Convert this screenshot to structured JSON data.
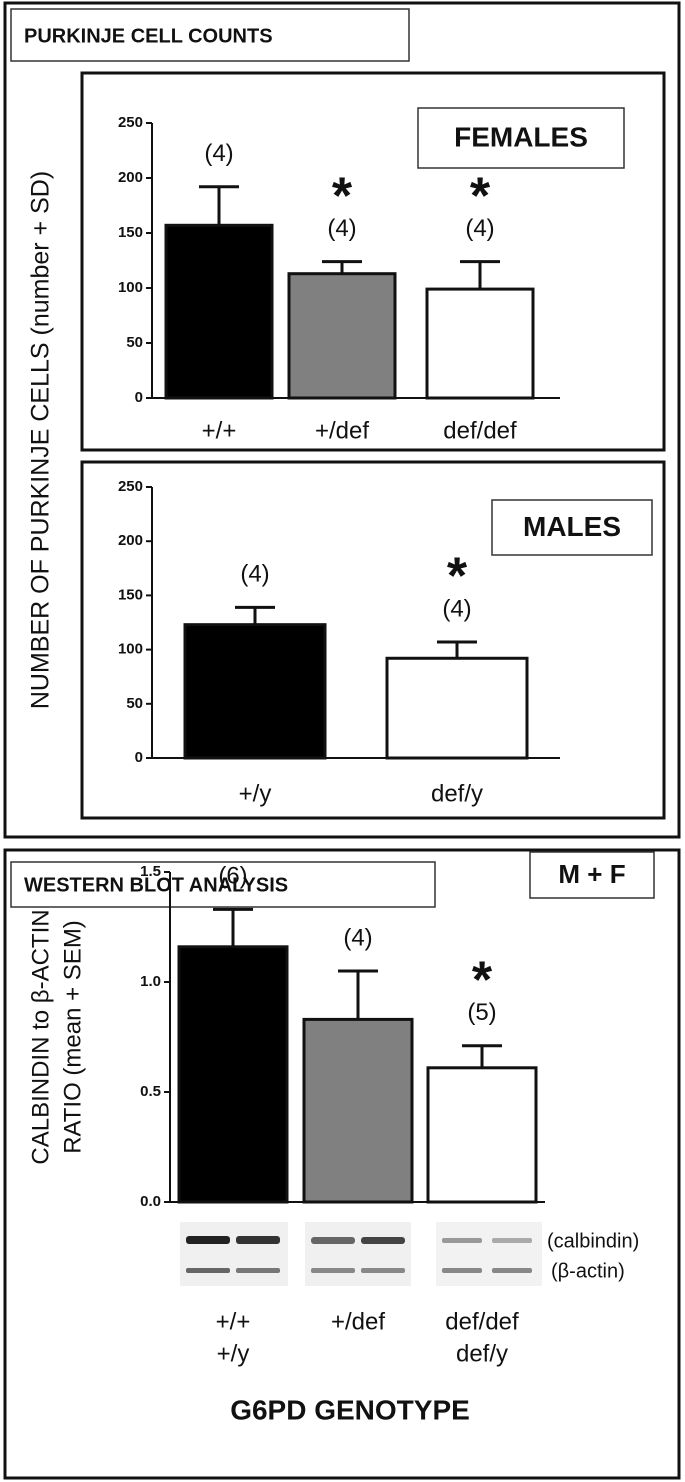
{
  "panels": [
    {
      "title": "PURKINJE CELL COUNTS",
      "ylabel": "NUMBER OF PURKINJE CELLS (number + SD)"
    },
    {
      "title": "WESTERN BLOT ANALYSIS",
      "xlabel": "G6PD GENOTYPE",
      "blot_labels": [
        "(calbindin)",
        "(β-actin)"
      ]
    }
  ],
  "chart_data": [
    {
      "type": "bar",
      "label_box": "FEMALES",
      "categories": [
        [
          "+/+"
        ],
        [
          "+/def"
        ],
        [
          "def/def"
        ]
      ],
      "values": [
        157,
        113,
        99
      ],
      "errors": [
        35,
        11,
        25
      ],
      "n_labels": [
        "(4)",
        "(4)",
        "(4)"
      ],
      "stars": [
        null,
        "*",
        "*"
      ],
      "colors": [
        "#000000",
        "#808080",
        "#ffffff"
      ],
      "ylim": [
        0,
        250
      ],
      "yticks": [
        0,
        50,
        100,
        150,
        200,
        250
      ]
    },
    {
      "type": "bar",
      "label_box": "MALES",
      "categories": [
        [
          "+/y"
        ],
        [
          "def/y"
        ]
      ],
      "values": [
        123,
        92
      ],
      "errors": [
        16,
        15
      ],
      "n_labels": [
        "(4)",
        "(4)"
      ],
      "stars": [
        null,
        "*"
      ],
      "colors": [
        "#000000",
        "#ffffff"
      ],
      "ylim": [
        0,
        250
      ],
      "yticks": [
        0,
        50,
        100,
        150,
        200,
        250
      ]
    },
    {
      "type": "bar",
      "label_box": "M + F",
      "ylabel": [
        "CALBINDIN to β-ACTIN",
        "RATIO (mean + SEM)"
      ],
      "categories": [
        [
          "+/+",
          "+/y"
        ],
        [
          "+/def"
        ],
        [
          "def/def",
          "def/y"
        ]
      ],
      "values": [
        1.16,
        0.83,
        0.61
      ],
      "errors": [
        0.17,
        0.22,
        0.1
      ],
      "n_labels": [
        "(6)",
        "(4)",
        "(5)"
      ],
      "stars": [
        null,
        null,
        "*"
      ],
      "colors": [
        "#000000",
        "#808080",
        "#ffffff"
      ],
      "ylim": [
        0,
        1.5
      ],
      "yticks": [
        {
          "value": 0,
          "label": "0.0"
        },
        0.5,
        {
          "value": 1,
          "label": "1.0"
        },
        1.5
      ]
    }
  ]
}
